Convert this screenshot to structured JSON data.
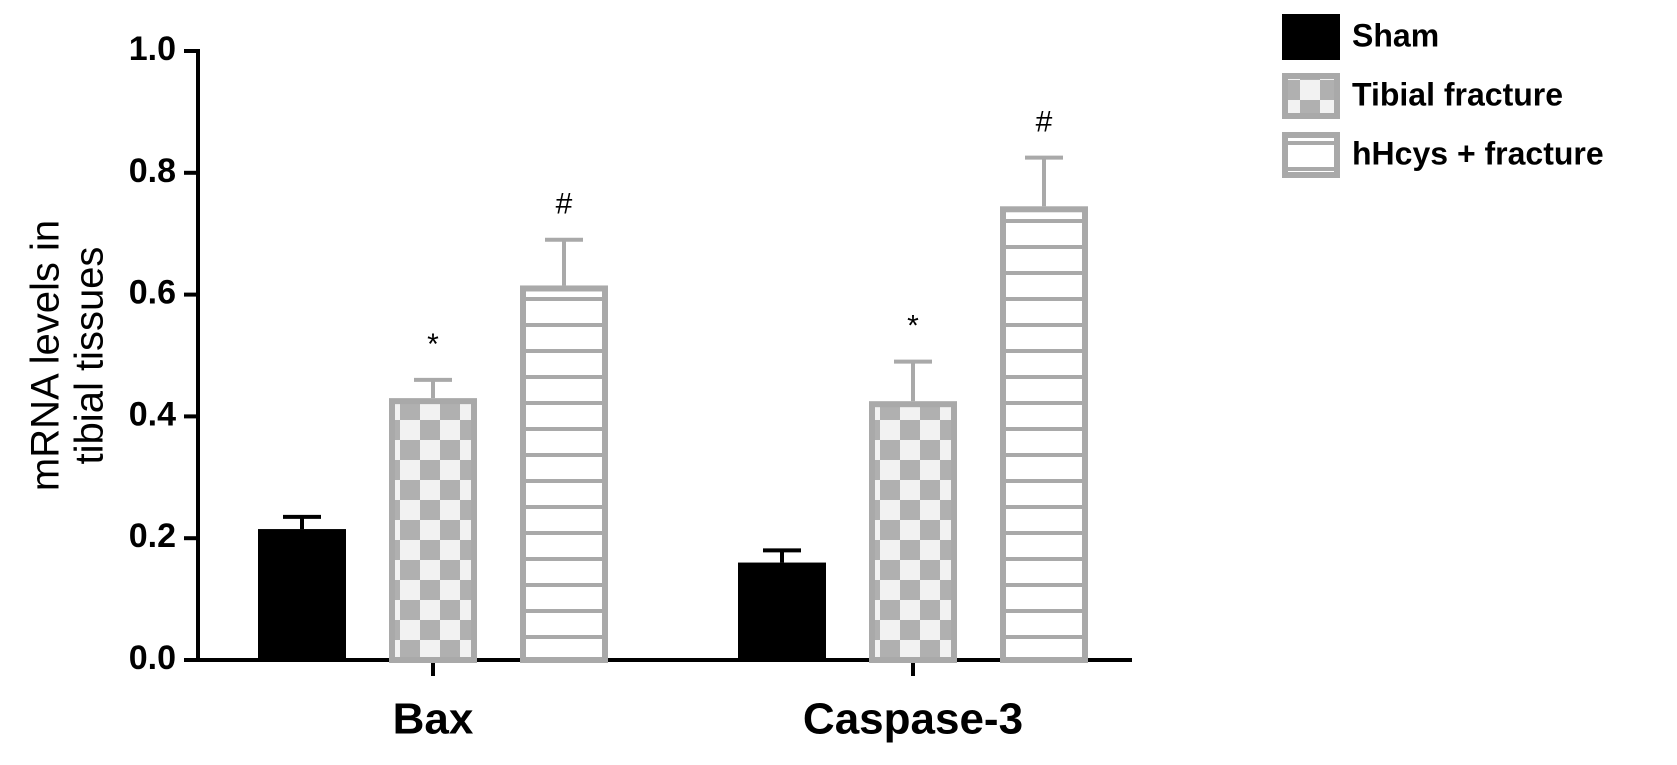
{
  "chart_data": {
    "type": "bar",
    "ylabel": [
      "mRNA levels in",
      "tibial tissues"
    ],
    "categories": [
      "Bax",
      "Caspase-3"
    ],
    "series": [
      {
        "name": "Sham",
        "color": "#000000",
        "pattern": "solid",
        "values": [
          0.215,
          0.16
        ],
        "errors": [
          0.02,
          0.02
        ]
      },
      {
        "name": "Tibial fracture",
        "color": "#a9a9a9",
        "pattern": "checker",
        "values": [
          0.43,
          0.425
        ],
        "errors": [
          0.03,
          0.065
        ],
        "annotations": [
          "*",
          "*"
        ]
      },
      {
        "name": "hHcys + fracture",
        "color": "#a9a9a9",
        "pattern": "stripes",
        "values": [
          0.615,
          0.745
        ],
        "errors": [
          0.075,
          0.08
        ],
        "annotations": [
          "#",
          "#"
        ]
      }
    ],
    "ylim": [
      0,
      1
    ],
    "yticks": [
      {
        "value": 0,
        "label": "0.0"
      },
      0.2,
      0.4,
      0.6,
      0.8,
      {
        "value": 1,
        "label": "1.0"
      }
    ],
    "legend": "top-right"
  }
}
